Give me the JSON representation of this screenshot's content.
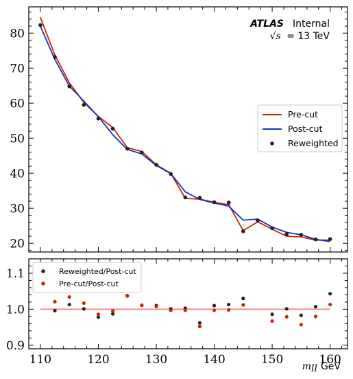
{
  "chart_data": [
    {
      "type": "line",
      "panel": "main",
      "annotation": {
        "experiment": "ATLAS",
        "status": "Internal",
        "energy_symbol": "√s",
        "energy_value": "= 13 TeV"
      },
      "xlim": [
        108,
        163
      ],
      "ylim": [
        17.5,
        87.5
      ],
      "yticks": [
        "20",
        "30",
        "40",
        "50",
        "60",
        "70",
        "80"
      ],
      "x": [
        110,
        112.5,
        115,
        117.5,
        120,
        122.5,
        125,
        127.5,
        130,
        132.5,
        135,
        137.5,
        140,
        142.5,
        145,
        147.5,
        150,
        152.5,
        155,
        157.5,
        160
      ],
      "series": [
        {
          "name": "Pre-cut",
          "color": "#cc2200",
          "style": "line",
          "values": [
            84.5,
            73.8,
            65.8,
            60.2,
            56.2,
            53.0,
            47.3,
            46.2,
            42.4,
            40.0,
            32.8,
            32.6,
            31.7,
            31.0,
            23.6,
            26.1,
            24.0,
            22.0,
            21.8,
            20.9,
            20.9
          ]
        },
        {
          "name": "Post-cut",
          "color": "#1133bb",
          "style": "line",
          "values": [
            82.0,
            72.5,
            64.9,
            60.6,
            56.1,
            51.0,
            46.8,
            45.5,
            42.2,
            39.9,
            34.7,
            32.5,
            31.5,
            30.6,
            26.6,
            26.9,
            24.6,
            23.1,
            22.4,
            21.1,
            20.5
          ]
        },
        {
          "name": "Reweighted",
          "color": "#222222",
          "style": "scatter",
          "values": [
            82.3,
            73.2,
            64.8,
            59.5,
            55.6,
            52.7,
            47.0,
            45.9,
            42.4,
            39.8,
            33.1,
            33.0,
            31.7,
            31.6,
            23.4,
            26.5,
            24.3,
            22.6,
            22.4,
            21.1,
            21.2
          ]
        }
      ]
    },
    {
      "type": "scatter",
      "panel": "ratio",
      "xlim": [
        108,
        163
      ],
      "ylim": [
        0.89,
        1.14
      ],
      "xlabel_symbol": "m",
      "xlabel_sub": "ll",
      "xlabel_unit": "GeV",
      "xticks": [
        "110",
        "120",
        "130",
        "140",
        "150",
        "160"
      ],
      "yticks": [
        "0.9",
        "1.0",
        "1.1"
      ],
      "reference_line": {
        "value": 1.0,
        "color": "#f07a7a"
      },
      "x": [
        112.5,
        115,
        117.5,
        120,
        122.5,
        125,
        127.5,
        130,
        132.5,
        135,
        137.5,
        140,
        142.5,
        145,
        150,
        152.5,
        155,
        157.5,
        160
      ],
      "series": [
        {
          "name": "Reweighted/Post-cut",
          "color": "#222222",
          "values": [
            0.996,
            1.013,
            1.001,
            0.978,
            0.987,
            1.037,
            1.011,
            1.01,
            1.001,
            1.003,
            0.962,
            1.01,
            1.013,
            1.03,
            0.986,
            1.001,
            0.983,
            1.007,
            1.043
          ]
        },
        {
          "name": "Pre-cut/Post-cut",
          "color": "#cc2200",
          "values": [
            1.021,
            1.034,
            1.017,
            0.986,
            0.995,
            1.038,
            1.011,
            1.008,
            0.997,
            0.997,
            0.952,
            0.997,
            0.998,
            1.012,
            0.967,
            0.979,
            0.957,
            0.98,
            1.013
          ]
        }
      ]
    }
  ]
}
